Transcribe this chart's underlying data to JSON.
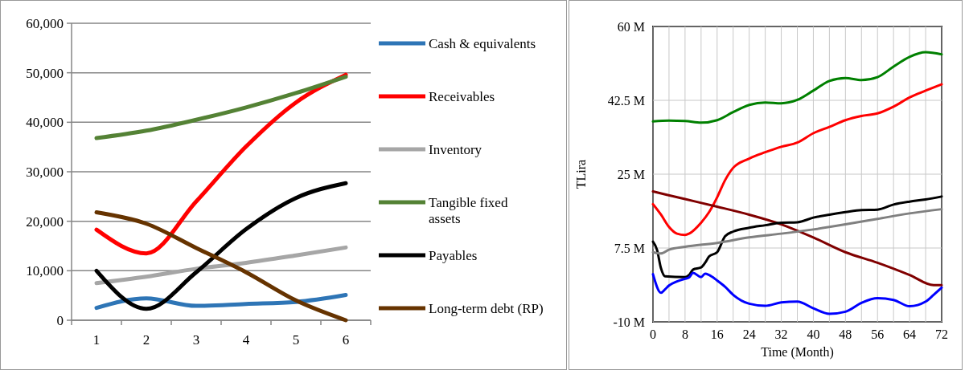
{
  "chart_data": [
    {
      "type": "line",
      "categories": [
        "1",
        "2",
        "3",
        "4",
        "5",
        "6"
      ],
      "ylim": [
        0,
        60000
      ],
      "yticks": [
        {
          "value": 0,
          "label": "0"
        },
        {
          "value": 10000,
          "label": "10,000"
        },
        {
          "value": 20000,
          "label": "20,000"
        },
        {
          "value": 30000,
          "label": "30,000"
        },
        {
          "value": 40000,
          "label": "40,000"
        },
        {
          "value": 50000,
          "label": "50,000"
        },
        {
          "value": 60000,
          "label": "60,000"
        }
      ],
      "grid": "y",
      "legend": "right",
      "marker": "none",
      "line_style": "solid",
      "series": [
        {
          "name": "Cash & equivalents",
          "color": "#2e75b6",
          "values": [
            2500,
            4400,
            2900,
            3300,
            3700,
            5100
          ]
        },
        {
          "name": "Receivables",
          "color": "#ff0000",
          "values": [
            18300,
            13500,
            24000,
            35100,
            44000,
            49600
          ]
        },
        {
          "name": "Inventory",
          "color": "#a6a6a6",
          "values": [
            7500,
            8800,
            10400,
            11600,
            13100,
            14700
          ]
        },
        {
          "name": "Tangible fixed assets",
          "color": "#548235",
          "values": [
            36800,
            38300,
            40500,
            43000,
            45900,
            49200
          ]
        },
        {
          "name": "Payables",
          "color": "#000000",
          "values": [
            10000,
            2300,
            9700,
            18400,
            24700,
            27700
          ]
        },
        {
          "name": "Long-term debt (RP)",
          "color": "#663300",
          "values": [
            21800,
            19500,
            14600,
            9700,
            4000,
            0
          ]
        }
      ]
    },
    {
      "type": "line",
      "xlabel": "Time (Month)",
      "ylabel": "TLira",
      "xlim": [
        0,
        72
      ],
      "xticks": [
        0,
        {
          "value": 4,
          "label": null
        },
        8,
        {
          "value": 12,
          "label": null
        },
        16,
        {
          "value": 20,
          "label": null
        },
        24,
        {
          "value": 28,
          "label": null
        },
        32,
        {
          "value": 36,
          "label": null
        },
        40,
        {
          "value": 44,
          "label": null
        },
        48,
        {
          "value": 52,
          "label": null
        },
        56,
        {
          "value": 60,
          "label": null
        },
        64,
        {
          "value": 68,
          "label": null
        },
        72
      ],
      "ylim": [
        -10,
        60
      ],
      "yticks": [
        {
          "value": -10,
          "label": "-10 M"
        },
        {
          "value": 7.5,
          "label": "7.5 M"
        },
        {
          "value": 25,
          "label": "25 M"
        },
        {
          "value": 42.5,
          "label": "42.5 M"
        },
        {
          "value": 60,
          "label": "60 M"
        }
      ],
      "grid": true,
      "legend": false,
      "marker": "none",
      "line_style": "solid",
      "series": [
        {
          "color": "#008000",
          "x": [
            0,
            4,
            8,
            12,
            16,
            20,
            24,
            28,
            32,
            36,
            40,
            44,
            48,
            52,
            56,
            60,
            64,
            68,
            72
          ],
          "values": [
            37.5,
            37.7,
            37.6,
            37.2,
            37.8,
            39.7,
            41.4,
            42.0,
            41.8,
            42.6,
            44.8,
            47.1,
            47.8,
            47.3,
            48.0,
            50.5,
            52.8,
            53.9,
            53.4
          ]
        },
        {
          "color": "#ff0000",
          "x": [
            0,
            2,
            4,
            6,
            8,
            9,
            12,
            14,
            16,
            18,
            20,
            24,
            28,
            32,
            36,
            40,
            44,
            48,
            52,
            56,
            60,
            64,
            68,
            72
          ],
          "values": [
            17.9,
            15.4,
            12.5,
            10.9,
            10.6,
            10.9,
            13.5,
            16.0,
            19.5,
            23.6,
            26.5,
            28.7,
            30.2,
            31.5,
            32.5,
            34.7,
            36.2,
            37.8,
            38.8,
            39.4,
            41.0,
            43.2,
            44.8,
            46.3
          ]
        },
        {
          "color": "#800000",
          "x": [
            0,
            8,
            16,
            24,
            32,
            40,
            48,
            56,
            64,
            70,
            72
          ],
          "values": [
            20.9,
            19.1,
            17.3,
            15.4,
            13.1,
            10.0,
            6.5,
            4.0,
            1.1,
            -1.3,
            -1.3
          ]
        },
        {
          "color": "#000000",
          "x": [
            0,
            1,
            2,
            3,
            8,
            9,
            10,
            12,
            13,
            14,
            16,
            18,
            20,
            24,
            28,
            32,
            36,
            40,
            44,
            48,
            52,
            56,
            60,
            64,
            68,
            72
          ],
          "values": [
            9.0,
            7.1,
            2.7,
            0.8,
            0.6,
            1.1,
            2.4,
            2.9,
            4.0,
            5.5,
            6.5,
            10.3,
            11.4,
            12.3,
            12.9,
            13.5,
            13.6,
            14.7,
            15.4,
            16.0,
            16.5,
            16.6,
            17.8,
            18.5,
            19.0,
            19.7
          ]
        },
        {
          "color": "#808080",
          "x": [
            0,
            2,
            4,
            8,
            16,
            24,
            32,
            40,
            48,
            56,
            64,
            72
          ],
          "values": [
            6.5,
            6.2,
            7.1,
            7.8,
            8.7,
            10.0,
            10.9,
            11.9,
            13.1,
            14.4,
            15.7,
            16.7
          ]
        },
        {
          "color": "#0000ff",
          "x": [
            0,
            2,
            3,
            4,
            6,
            8,
            9,
            10,
            12,
            13,
            14,
            16,
            18,
            20,
            24,
            28,
            32,
            36,
            40,
            44,
            48,
            52,
            56,
            60,
            64,
            68,
            70,
            72
          ],
          "values": [
            1.3,
            -3.1,
            -2.3,
            -1.4,
            -0.4,
            0.2,
            0.5,
            1.6,
            0.6,
            1.4,
            1.1,
            -0.2,
            -1.7,
            -3.6,
            -5.7,
            -6.2,
            -5.4,
            -5.2,
            -6.8,
            -8.1,
            -7.6,
            -5.5,
            -4.4,
            -4.8,
            -6.3,
            -5.2,
            -3.6,
            -1.9
          ]
        }
      ]
    }
  ]
}
